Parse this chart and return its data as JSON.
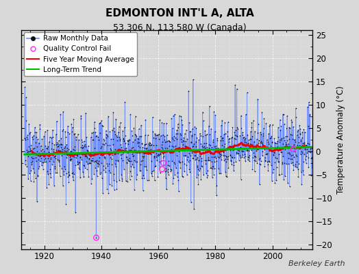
{
  "title": "EDMONTON INT'L A, ALTA",
  "subtitle": "53.306 N, 113.580 W (Canada)",
  "ylabel": "Temperature Anomaly (°C)",
  "attribution": "Berkeley Earth",
  "ylim": [
    -21,
    26
  ],
  "yticks": [
    -20,
    -15,
    -10,
    -5,
    0,
    5,
    10,
    15,
    20,
    25
  ],
  "xlim": [
    1912,
    2014
  ],
  "xticks": [
    1920,
    1940,
    1960,
    1980,
    2000
  ],
  "start_year": 1913,
  "end_year": 2013,
  "seed": 137,
  "bg_color": "#d8d8d8",
  "plot_bg_color": "#d8d8d8",
  "raw_line_color": "#6688ff",
  "raw_dot_color": "#111111",
  "ma_color": "#ee0000",
  "trend_color": "#00bb00",
  "qc_color": "#ff22ff",
  "noise_std": 3.2,
  "trend_slope": 0.012,
  "n_spikes": 60,
  "spike_min": 4,
  "spike_max": 9,
  "qc_fail_points": [
    [
      1938.2,
      -18.5
    ],
    [
      1961.3,
      -3.8
    ],
    [
      1961.8,
      -2.5
    ],
    [
      2007.3,
      0.5
    ]
  ]
}
